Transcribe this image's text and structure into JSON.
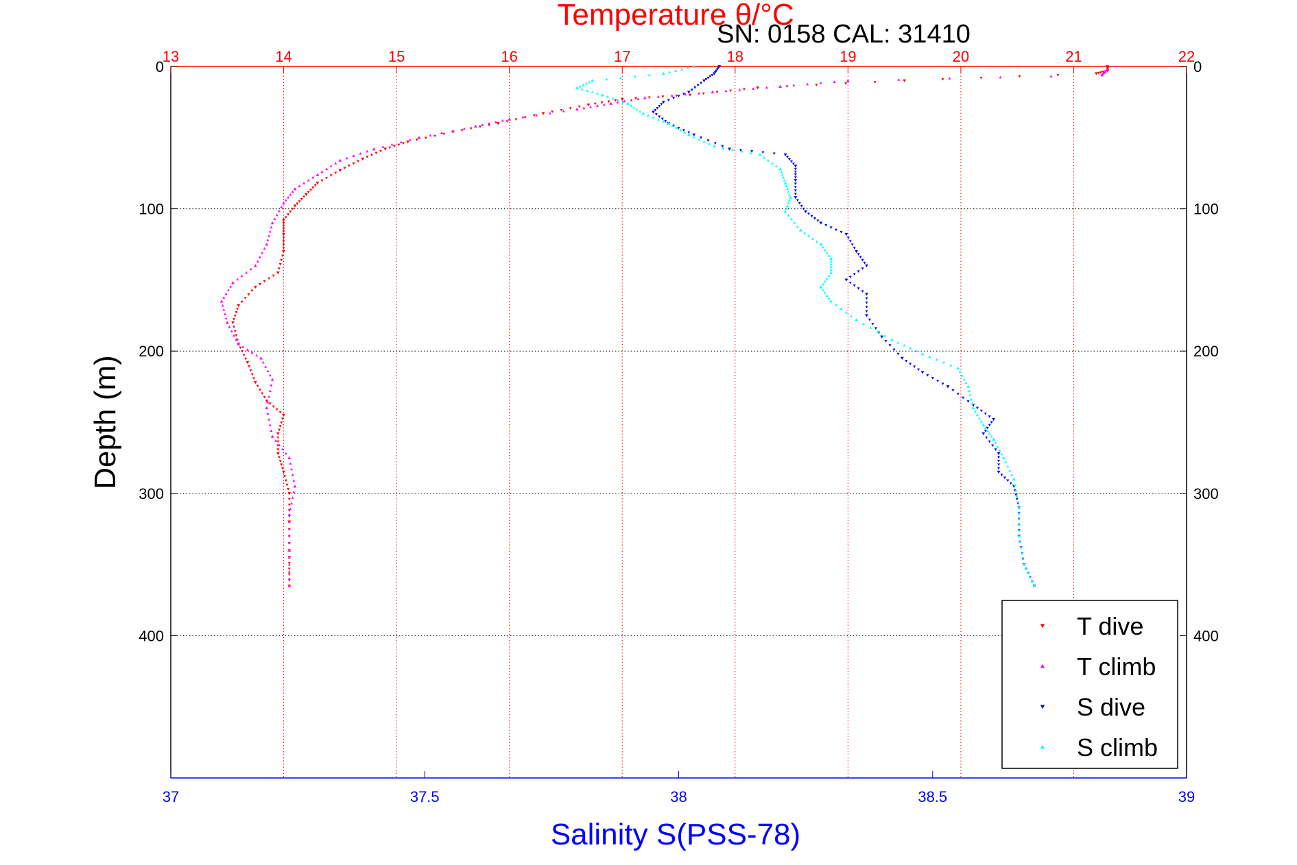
{
  "chart_data": {
    "type": "scatter",
    "title": "Temperature θ/°C",
    "subtitle": "SN: 0158  CAL: 31410",
    "xlabel": "Salinity S(PSS-78)",
    "ylabel": "Depth (m)",
    "temperature_axis": {
      "range": [
        13,
        22
      ],
      "ticks": [
        "13",
        "14",
        "15",
        "16",
        "17",
        "18",
        "19",
        "20",
        "21",
        "22"
      ]
    },
    "salinity_axis": {
      "range": [
        37,
        39
      ],
      "ticks": [
        "37",
        "37.5",
        "38",
        "38.5",
        "39"
      ]
    },
    "depth_axis": {
      "range": [
        0,
        500
      ],
      "reversed": true,
      "ticks": [
        "0",
        "100",
        "200",
        "300",
        "400"
      ]
    },
    "grid": true,
    "legend_position": "bottom-right",
    "colors": {
      "t_dive": "#ff0000",
      "t_climb": "#ff00ff",
      "s_dive": "#0000ff",
      "s_climb": "#00ffff",
      "temperature_axis": "#ff0000",
      "salinity_axis": "#0000ff"
    },
    "series": [
      {
        "name": "T dive",
        "variable": "temperature",
        "marker": "triangle-down",
        "points": [
          [
            21.3,
            0
          ],
          [
            21.3,
            3
          ],
          [
            21.2,
            5
          ],
          [
            19.5,
            10
          ],
          [
            18.2,
            15
          ],
          [
            17.6,
            20
          ],
          [
            17.0,
            23
          ],
          [
            16.7,
            27
          ],
          [
            16.3,
            33
          ],
          [
            15.9,
            40
          ],
          [
            15.5,
            46
          ],
          [
            15.1,
            53
          ],
          [
            14.9,
            58
          ],
          [
            14.7,
            65
          ],
          [
            14.5,
            73
          ],
          [
            14.3,
            82
          ],
          [
            14.2,
            90
          ],
          [
            14.1,
            98
          ],
          [
            14.0,
            108
          ],
          [
            14.0,
            118
          ],
          [
            14.0,
            130
          ],
          [
            13.95,
            145
          ],
          [
            13.75,
            155
          ],
          [
            13.6,
            168
          ],
          [
            13.55,
            180
          ],
          [
            13.6,
            195
          ],
          [
            13.68,
            208
          ],
          [
            13.75,
            222
          ],
          [
            13.85,
            235
          ],
          [
            14.0,
            245
          ],
          [
            13.95,
            258
          ],
          [
            13.95,
            272
          ],
          [
            14.0,
            285
          ],
          [
            14.05,
            300
          ],
          [
            14.05,
            320
          ],
          [
            14.05,
            345
          ],
          [
            14.05,
            365
          ]
        ]
      },
      {
        "name": "T climb",
        "variable": "temperature",
        "marker": "triangle-up",
        "points": [
          [
            21.3,
            2
          ],
          [
            21.25,
            6
          ],
          [
            19.0,
            10
          ],
          [
            18.4,
            14
          ],
          [
            17.8,
            18
          ],
          [
            17.2,
            22
          ],
          [
            16.9,
            26
          ],
          [
            16.6,
            30
          ],
          [
            16.0,
            37
          ],
          [
            15.7,
            42
          ],
          [
            15.2,
            50
          ],
          [
            14.8,
            58
          ],
          [
            14.5,
            66
          ],
          [
            14.3,
            76
          ],
          [
            14.1,
            86
          ],
          [
            14.0,
            96
          ],
          [
            13.9,
            110
          ],
          [
            13.85,
            125
          ],
          [
            13.75,
            140
          ],
          [
            13.55,
            152
          ],
          [
            13.45,
            165
          ],
          [
            13.5,
            180
          ],
          [
            13.6,
            195
          ],
          [
            13.8,
            205
          ],
          [
            13.9,
            220
          ],
          [
            13.85,
            240
          ],
          [
            13.9,
            260
          ],
          [
            14.05,
            275
          ],
          [
            14.1,
            295
          ],
          [
            14.05,
            315
          ],
          [
            14.05,
            340
          ],
          [
            14.05,
            365
          ]
        ]
      },
      {
        "name": "S dive",
        "variable": "salinity",
        "marker": "triangle-down",
        "points": [
          [
            38.08,
            0
          ],
          [
            38.07,
            5
          ],
          [
            38.05,
            10
          ],
          [
            38.02,
            18
          ],
          [
            37.97,
            25
          ],
          [
            37.95,
            32
          ],
          [
            37.98,
            40
          ],
          [
            38.03,
            48
          ],
          [
            38.1,
            58
          ],
          [
            38.21,
            62
          ],
          [
            38.23,
            70
          ],
          [
            38.23,
            80
          ],
          [
            38.23,
            92
          ],
          [
            38.25,
            102
          ],
          [
            38.28,
            110
          ],
          [
            38.33,
            118
          ],
          [
            38.35,
            130
          ],
          [
            38.37,
            140
          ],
          [
            38.33,
            150
          ],
          [
            38.37,
            160
          ],
          [
            38.37,
            175
          ],
          [
            38.4,
            190
          ],
          [
            38.44,
            205
          ],
          [
            38.48,
            215
          ],
          [
            38.53,
            225
          ],
          [
            38.58,
            238
          ],
          [
            38.62,
            248
          ],
          [
            38.6,
            258
          ],
          [
            38.63,
            272
          ],
          [
            38.63,
            285
          ],
          [
            38.66,
            295
          ],
          [
            38.67,
            310
          ],
          [
            38.67,
            330
          ],
          [
            38.68,
            350
          ],
          [
            38.7,
            365
          ]
        ]
      },
      {
        "name": "S climb",
        "variable": "salinity",
        "marker": "triangle-up",
        "points": [
          [
            38.03,
            0
          ],
          [
            37.97,
            5
          ],
          [
            37.83,
            10
          ],
          [
            37.8,
            15
          ],
          [
            37.85,
            20
          ],
          [
            37.9,
            26
          ],
          [
            37.93,
            33
          ],
          [
            37.98,
            40
          ],
          [
            38.02,
            48
          ],
          [
            38.07,
            56
          ],
          [
            38.16,
            62
          ],
          [
            38.2,
            72
          ],
          [
            38.21,
            82
          ],
          [
            38.22,
            92
          ],
          [
            38.21,
            102
          ],
          [
            38.24,
            115
          ],
          [
            38.28,
            125
          ],
          [
            38.3,
            135
          ],
          [
            38.3,
            145
          ],
          [
            38.28,
            155
          ],
          [
            38.3,
            165
          ],
          [
            38.35,
            178
          ],
          [
            38.42,
            192
          ],
          [
            38.48,
            202
          ],
          [
            38.55,
            212
          ],
          [
            38.57,
            225
          ],
          [
            38.58,
            240
          ],
          [
            38.6,
            252
          ],
          [
            38.62,
            262
          ],
          [
            38.64,
            275
          ],
          [
            38.66,
            290
          ],
          [
            38.67,
            310
          ],
          [
            38.67,
            330
          ],
          [
            38.68,
            350
          ],
          [
            38.7,
            365
          ]
        ]
      }
    ]
  }
}
